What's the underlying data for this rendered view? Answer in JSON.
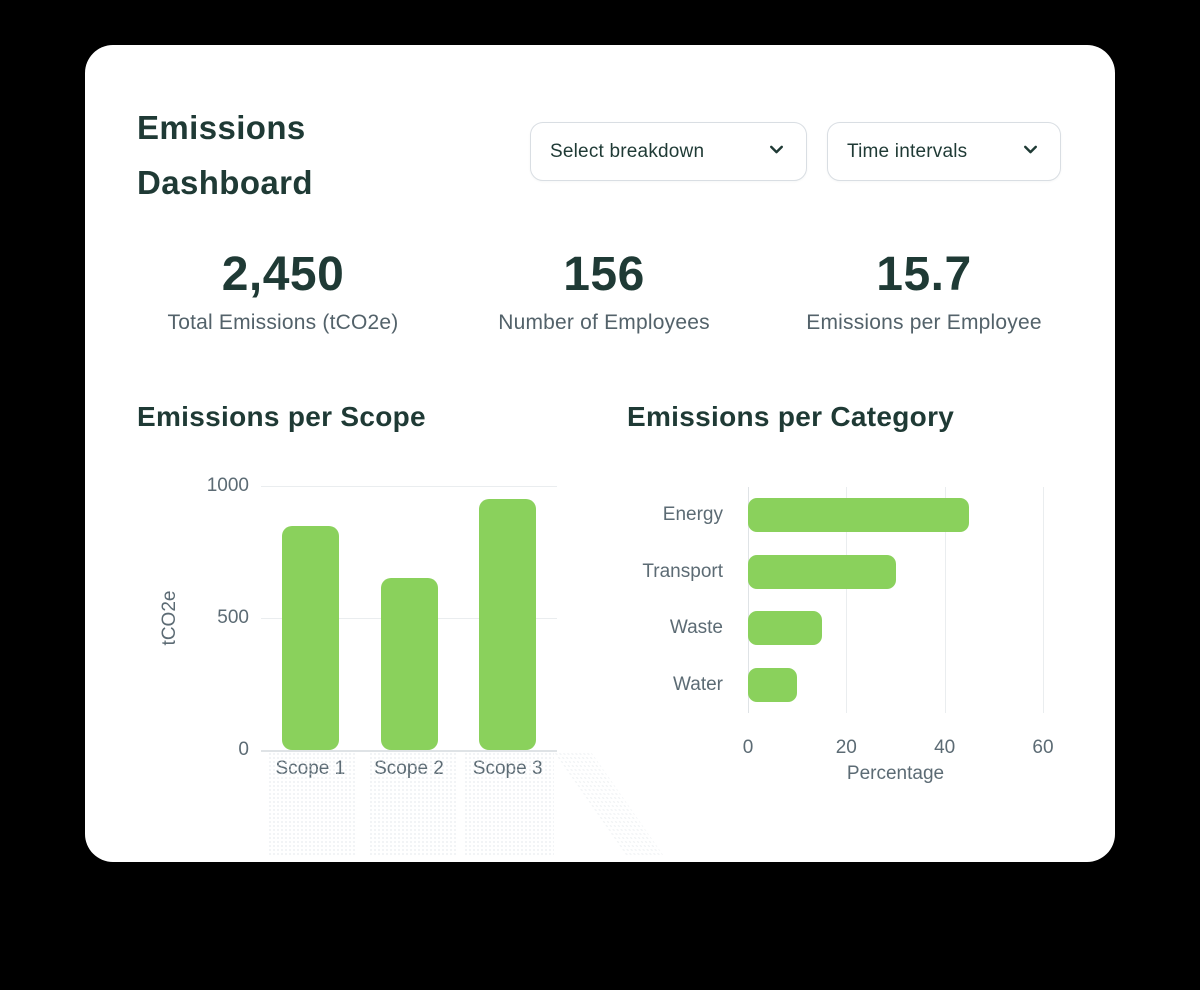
{
  "header": {
    "title": "Emissions Dashboard"
  },
  "controls": {
    "breakdown": {
      "label": "Select breakdown",
      "icon": "chevron-down"
    },
    "intervals": {
      "label": "Time intervals",
      "icon": "chevron-down"
    }
  },
  "stats": [
    {
      "value": "2,450",
      "label": "Total Emissions (tCO2e)"
    },
    {
      "value": "156",
      "label": "Number of Employees"
    },
    {
      "value": "15.7",
      "label": "Emissions per Employee"
    }
  ],
  "chart_data": [
    {
      "type": "bar",
      "title": "Emissions per Scope",
      "categories": [
        "Scope 1",
        "Scope 2",
        "Scope 3"
      ],
      "values": [
        850,
        650,
        950
      ],
      "xlabel": "",
      "ylabel": "tCO2e",
      "ylim": [
        0,
        1000
      ],
      "yticks": [
        0,
        500,
        1000
      ],
      "grid": true,
      "legend": false
    },
    {
      "type": "bar",
      "orientation": "horizontal",
      "title": "Emissions per Category",
      "categories": [
        "Energy",
        "Transport",
        "Waste",
        "Water"
      ],
      "values": [
        45,
        30,
        15,
        10
      ],
      "xlabel": "Percentage",
      "ylabel": "",
      "xlim": [
        0,
        60
      ],
      "xticks": [
        0,
        20,
        40,
        60
      ],
      "grid": true,
      "legend": false
    }
  ],
  "colors": {
    "bar_green": "#8AD15C",
    "heading": "#1F3A35",
    "muted_text": "#53626A",
    "axis_text": "#5C6B74",
    "grid_line": "#EAEDEF",
    "border": "#D9DEE3",
    "card_bg": "#FFFFFF",
    "page_bg": "#000000"
  }
}
